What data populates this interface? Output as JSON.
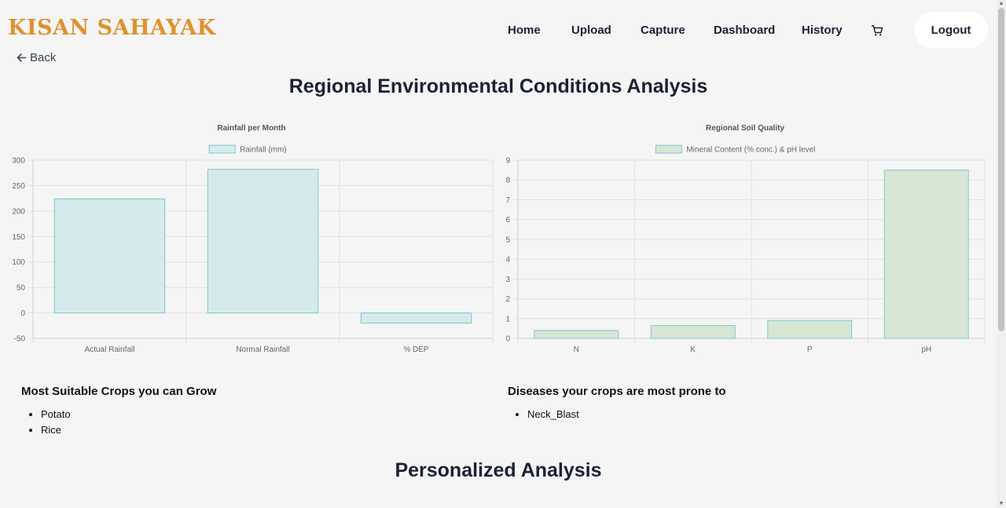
{
  "brand": "KISAN SAHAYAK",
  "nav": {
    "items": [
      "Home",
      "Upload",
      "Capture",
      "Dashboard",
      "History"
    ],
    "cart_icon": "cart-icon",
    "logout_label": "Logout"
  },
  "back_label": "Back",
  "page_title": "Regional Environmental Conditions Analysis",
  "chart_data": [
    {
      "type": "bar",
      "title": "Rainfall per Month",
      "categories": [
        "Actual Rainfall",
        "Normal Rainfall",
        "% DEP"
      ],
      "series": [
        {
          "name": "Rainfall (mm)",
          "values": [
            224,
            282,
            -20
          ]
        }
      ],
      "ylim": [
        -50,
        300
      ],
      "yticks": [
        300,
        250,
        200,
        150,
        100,
        50,
        0,
        -50
      ],
      "grid": true,
      "legend": "top",
      "colors": {
        "fill": "#d6eaec",
        "stroke": "#7ccacb"
      }
    },
    {
      "type": "bar",
      "title": "Regional Soil Quality",
      "categories": [
        "N",
        "K",
        "P",
        "pH"
      ],
      "series": [
        {
          "name": "Mineral Content (% conc.) & pH level",
          "values": [
            0.4,
            0.65,
            0.9,
            8.5
          ]
        }
      ],
      "ylim": [
        0,
        9
      ],
      "yticks": [
        9,
        8,
        7,
        6,
        5,
        4,
        3,
        2,
        1,
        0
      ],
      "grid": true,
      "legend": "top",
      "colors": {
        "fill": "#d8e6d4",
        "stroke": "#7ccacb"
      }
    }
  ],
  "crops": {
    "heading": "Most Suitable Crops you can Grow",
    "items": [
      "Potato",
      "Rice"
    ]
  },
  "diseases": {
    "heading": "Diseases your crops are most prone to",
    "items": [
      "Neck_Blast"
    ]
  },
  "personalized_title": "Personalized Analysis",
  "colors": {
    "brand": "#e0912f",
    "text": "#1a2233",
    "background": "#f5f5f5"
  }
}
